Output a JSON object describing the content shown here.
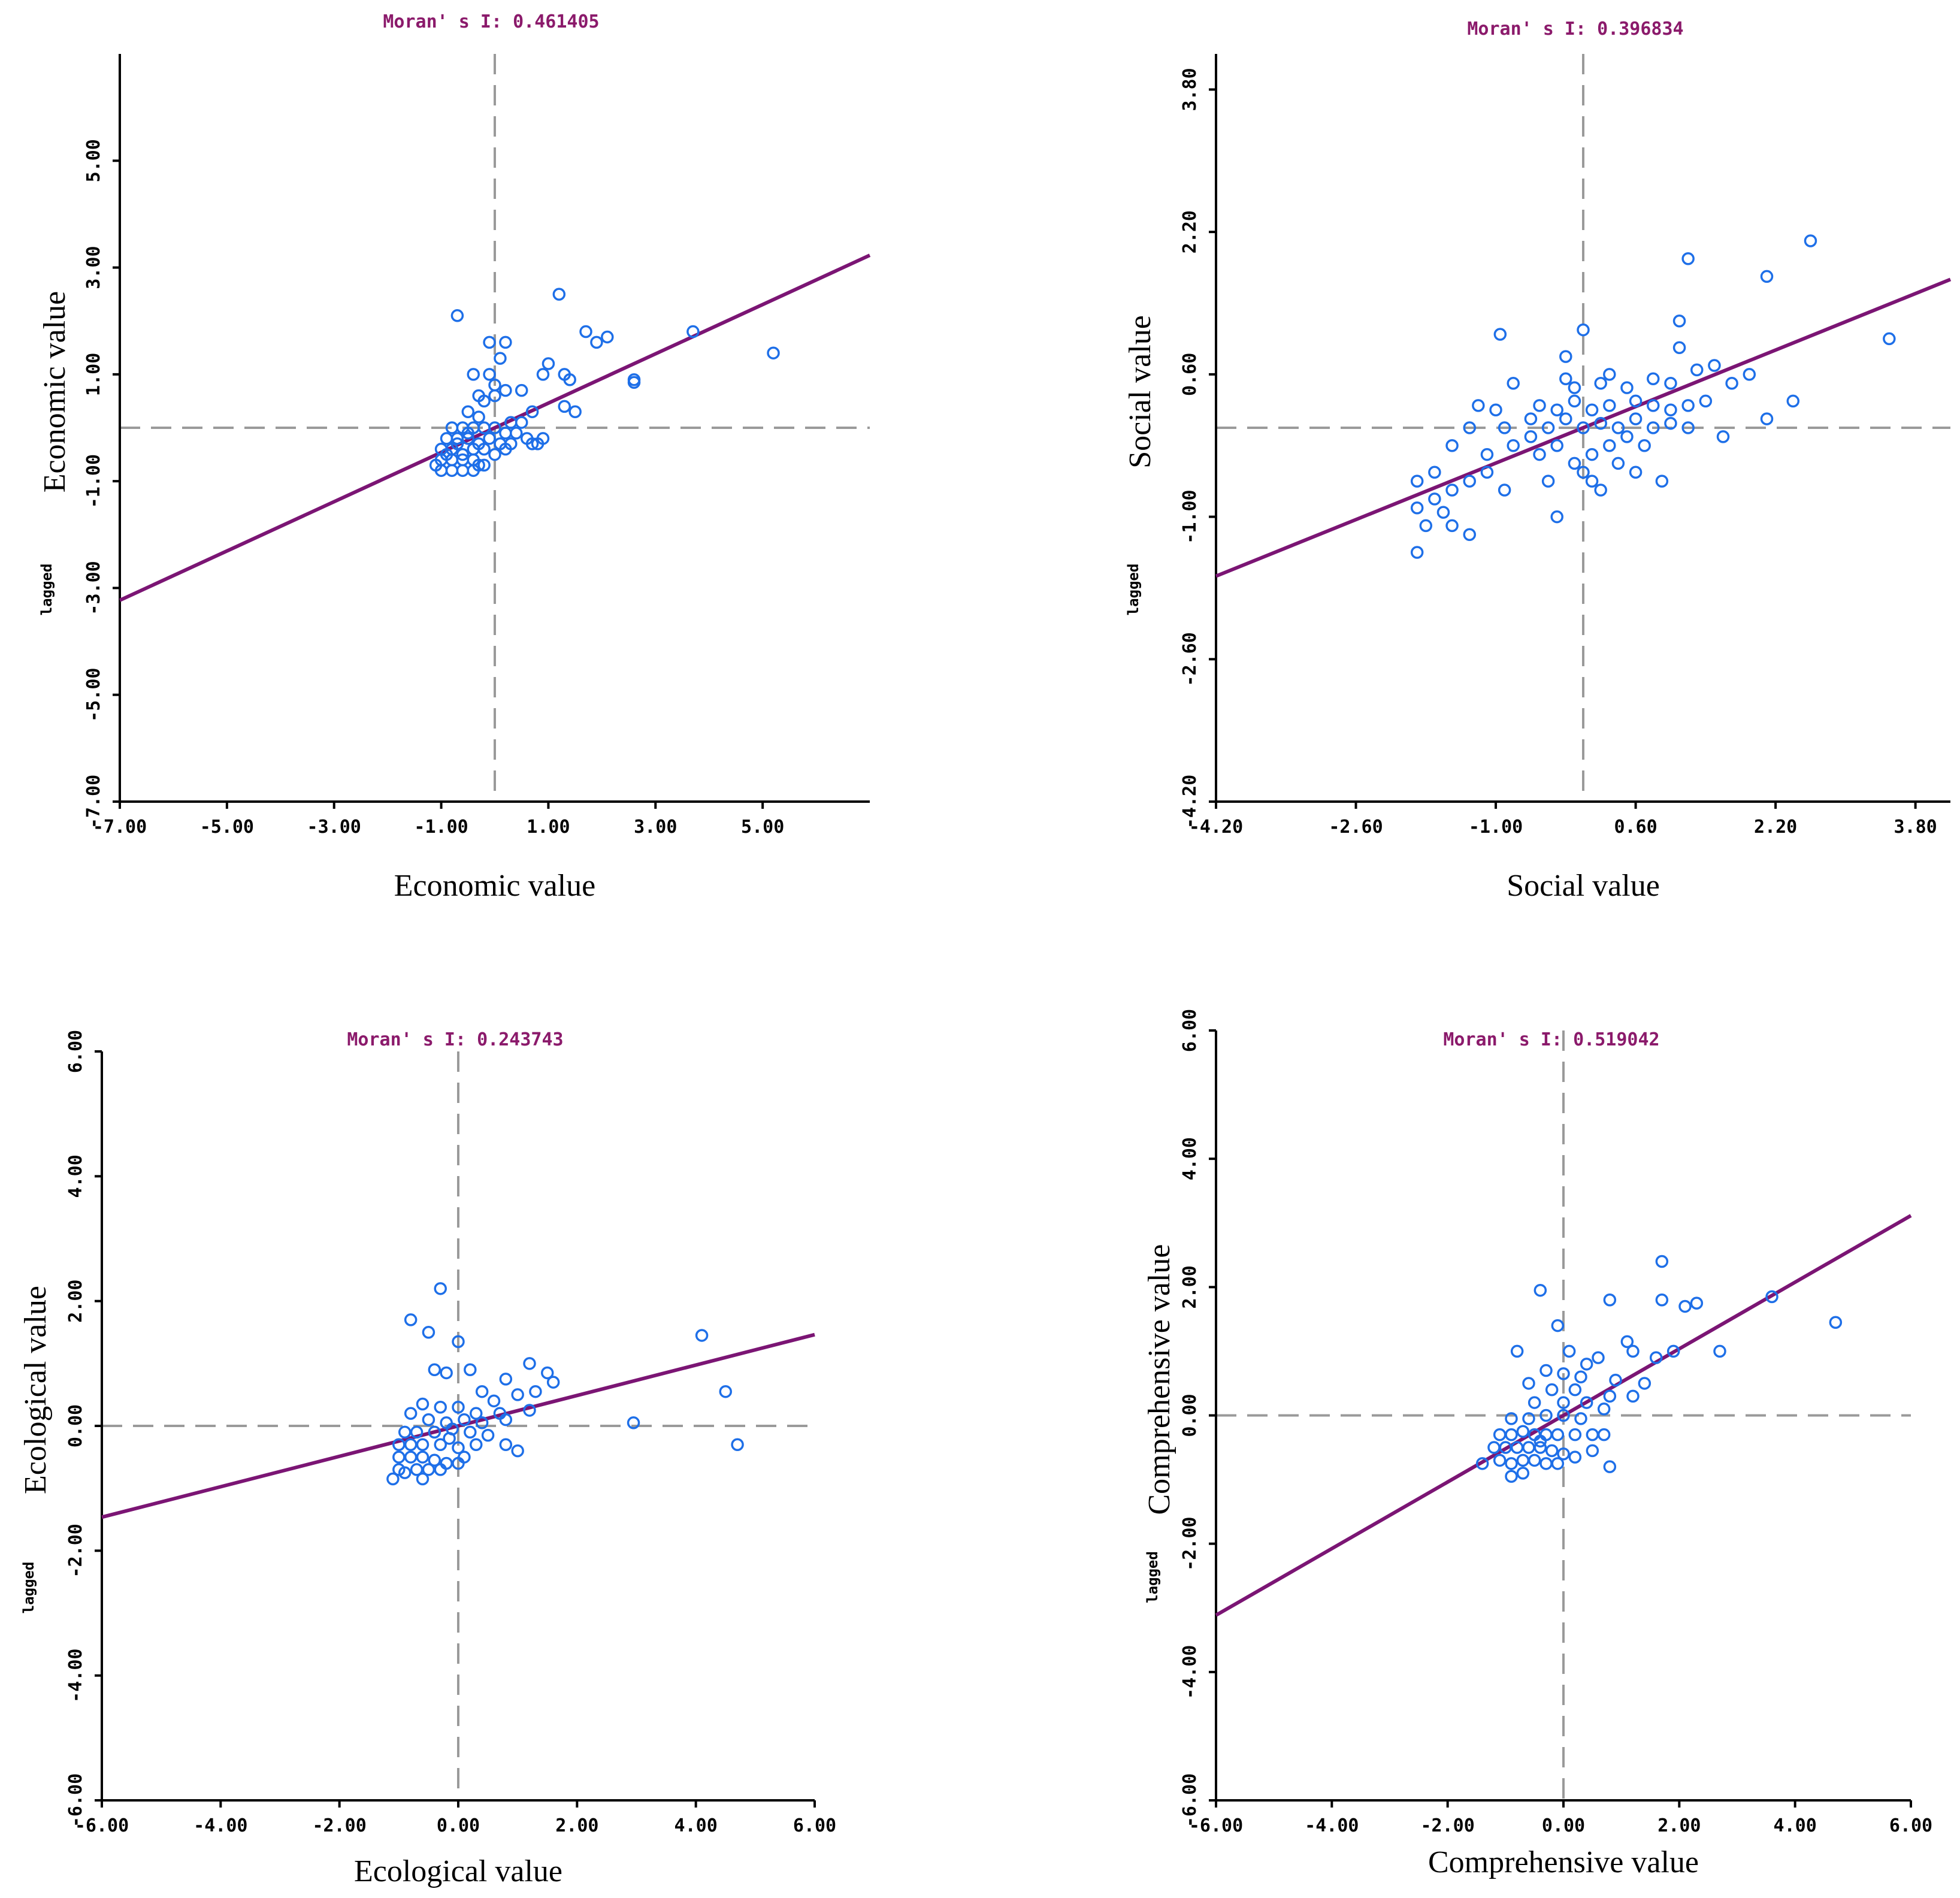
{
  "colors": {
    "points": "#1e6fe8",
    "regression": "#7b1574",
    "moran": "#8b1a6b",
    "guides": "#9a9a9a"
  },
  "chart_data": [
    {
      "type": "scatter",
      "moran_text": "Moran' s I: 0.461405",
      "xlabel": "Economic value",
      "ylabel_prefix": "lagged",
      "ylabel": "Economic value",
      "xlim": [
        -7,
        7
      ],
      "ylim": [
        -7,
        7
      ],
      "xticks": [
        -7,
        -5,
        -3,
        -1,
        1,
        3,
        5
      ],
      "xtick_labels": [
        "-7.00",
        "-5.00",
        "-3.00",
        "-1.00",
        "1.00",
        "3.00",
        "5.00"
      ],
      "yticks": [
        -7,
        -5,
        -3,
        -1,
        1,
        3,
        5
      ],
      "ytick_labels": [
        "-7.00",
        "-5.00",
        "-3.00",
        "-1.00",
        "1.00",
        "3.00",
        "5.00"
      ],
      "regression_slope": 0.461405,
      "points": [
        [
          -0.7,
          2.1
        ],
        [
          1.2,
          2.5
        ],
        [
          1.7,
          1.8
        ],
        [
          1.9,
          1.6
        ],
        [
          2.1,
          1.7
        ],
        [
          3.7,
          1.8
        ],
        [
          5.2,
          1.4
        ],
        [
          2.6,
          0.9
        ],
        [
          2.6,
          0.85
        ],
        [
          -0.1,
          1.6
        ],
        [
          0.2,
          1.6
        ],
        [
          0.1,
          1.3
        ],
        [
          -0.4,
          1.0
        ],
        [
          -0.1,
          1.0
        ],
        [
          1.0,
          1.2
        ],
        [
          0.9,
          1.0
        ],
        [
          1.3,
          1.0
        ],
        [
          1.4,
          0.9
        ],
        [
          1.3,
          0.4
        ],
        [
          1.5,
          0.3
        ],
        [
          0.0,
          0.8
        ],
        [
          0.2,
          0.7
        ],
        [
          0.5,
          0.7
        ],
        [
          -0.3,
          0.6
        ],
        [
          -0.2,
          0.5
        ],
        [
          0.0,
          0.6
        ],
        [
          -0.5,
          0.3
        ],
        [
          -0.3,
          0.2
        ],
        [
          0.3,
          0.1
        ],
        [
          0.7,
          0.3
        ],
        [
          0.5,
          0.1
        ],
        [
          -0.8,
          0.0
        ],
        [
          -0.6,
          0.0
        ],
        [
          -0.4,
          0.0
        ],
        [
          -0.2,
          0.0
        ],
        [
          0.0,
          0.0
        ],
        [
          0.2,
          -0.1
        ],
        [
          0.4,
          -0.1
        ],
        [
          -0.9,
          -0.2
        ],
        [
          -0.7,
          -0.2
        ],
        [
          -0.5,
          -0.2
        ],
        [
          -0.3,
          -0.3
        ],
        [
          -0.1,
          -0.2
        ],
        [
          0.1,
          -0.3
        ],
        [
          0.3,
          -0.3
        ],
        [
          0.6,
          -0.2
        ],
        [
          0.7,
          -0.3
        ],
        [
          0.8,
          -0.3
        ],
        [
          0.9,
          -0.2
        ],
        [
          -1.0,
          -0.4
        ],
        [
          -0.8,
          -0.4
        ],
        [
          -0.6,
          -0.5
        ],
        [
          -0.4,
          -0.4
        ],
        [
          -0.2,
          -0.4
        ],
        [
          0.0,
          -0.5
        ],
        [
          0.2,
          -0.4
        ],
        [
          -1.0,
          -0.6
        ],
        [
          -0.8,
          -0.6
        ],
        [
          -0.6,
          -0.6
        ],
        [
          -0.4,
          -0.6
        ],
        [
          -0.2,
          -0.7
        ],
        [
          -1.0,
          -0.8
        ],
        [
          -0.8,
          -0.8
        ],
        [
          -0.6,
          -0.8
        ],
        [
          -0.4,
          -0.8
        ],
        [
          -0.7,
          -0.3
        ],
        [
          -0.5,
          -0.1
        ],
        [
          -0.9,
          -0.5
        ],
        [
          -1.1,
          -0.7
        ],
        [
          -0.3,
          -0.7
        ]
      ]
    },
    {
      "type": "scatter",
      "moran_text": "Moran' s I: 0.396834",
      "xlabel": "Social value",
      "ylabel_prefix": "lagged",
      "ylabel": "Social value",
      "xlim": [
        -4.2,
        4.2
      ],
      "ylim": [
        -4.2,
        4.2
      ],
      "xticks": [
        -4.2,
        -2.6,
        -1.0,
        0.6,
        2.2,
        3.8
      ],
      "xtick_labels": [
        "-4.20",
        "-2.60",
        "-1.00",
        "0.60",
        "2.20",
        "3.80"
      ],
      "yticks": [
        -4.2,
        -2.6,
        -1.0,
        0.6,
        2.2,
        3.8
      ],
      "ytick_labels": [
        "-4.20",
        "-2.60",
        "-1.00",
        "0.60",
        "2.20",
        "3.80"
      ],
      "regression_slope": 0.396834,
      "points": [
        [
          2.6,
          2.1
        ],
        [
          1.2,
          1.9
        ],
        [
          2.1,
          1.7
        ],
        [
          1.1,
          1.2
        ],
        [
          -0.95,
          1.05
        ],
        [
          0.0,
          1.1
        ],
        [
          1.1,
          0.9
        ],
        [
          3.5,
          1.0
        ],
        [
          -0.2,
          0.8
        ],
        [
          0.3,
          0.6
        ],
        [
          -0.8,
          0.5
        ],
        [
          -0.2,
          0.55
        ],
        [
          -0.1,
          0.45
        ],
        [
          0.2,
          0.5
        ],
        [
          0.5,
          0.45
        ],
        [
          0.8,
          0.55
        ],
        [
          1.0,
          0.5
        ],
        [
          1.3,
          0.65
        ],
        [
          1.5,
          0.7
        ],
        [
          1.7,
          0.5
        ],
        [
          1.9,
          0.6
        ],
        [
          -1.2,
          0.25
        ],
        [
          -1.0,
          0.2
        ],
        [
          -0.5,
          0.25
        ],
        [
          -0.3,
          0.2
        ],
        [
          -0.1,
          0.3
        ],
        [
          0.1,
          0.2
        ],
        [
          0.3,
          0.25
        ],
        [
          0.6,
          0.3
        ],
        [
          0.8,
          0.25
        ],
        [
          1.0,
          0.2
        ],
        [
          1.2,
          0.25
        ],
        [
          1.4,
          0.3
        ],
        [
          -1.3,
          0.0
        ],
        [
          -0.9,
          0.0
        ],
        [
          -0.6,
          0.1
        ],
        [
          -0.4,
          0.0
        ],
        [
          -0.2,
          0.1
        ],
        [
          0.0,
          0.0
        ],
        [
          0.2,
          0.05
        ],
        [
          0.4,
          0.0
        ],
        [
          0.6,
          0.1
        ],
        [
          0.8,
          0.0
        ],
        [
          1.0,
          0.05
        ],
        [
          1.2,
          0.0
        ],
        [
          2.1,
          0.1
        ],
        [
          2.4,
          0.3
        ],
        [
          -1.5,
          -0.2
        ],
        [
          -1.1,
          -0.3
        ],
        [
          -0.8,
          -0.2
        ],
        [
          -0.5,
          -0.3
        ],
        [
          -0.3,
          -0.2
        ],
        [
          -0.1,
          -0.4
        ],
        [
          0.1,
          -0.3
        ],
        [
          0.3,
          -0.2
        ],
        [
          0.5,
          -0.1
        ],
        [
          0.7,
          -0.2
        ],
        [
          1.6,
          -0.1
        ],
        [
          -1.9,
          -0.6
        ],
        [
          -1.7,
          -0.5
        ],
        [
          -1.5,
          -0.7
        ],
        [
          -1.3,
          -0.6
        ],
        [
          -1.1,
          -0.5
        ],
        [
          -0.9,
          -0.7
        ],
        [
          -0.4,
          -0.6
        ],
        [
          0.1,
          -0.6
        ],
        [
          0.6,
          -0.5
        ],
        [
          0.9,
          -0.6
        ],
        [
          -1.9,
          -0.9
        ],
        [
          -1.8,
          -1.1
        ],
        [
          -1.6,
          -0.95
        ],
        [
          -1.5,
          -1.1
        ],
        [
          -1.3,
          -1.2
        ],
        [
          -1.7,
          -0.8
        ],
        [
          -0.3,
          -1.0
        ],
        [
          -1.9,
          -1.4
        ],
        [
          0.2,
          -0.7
        ],
        [
          -0.6,
          -0.1
        ],
        [
          0.0,
          -0.5
        ],
        [
          0.4,
          -0.4
        ]
      ]
    },
    {
      "type": "scatter",
      "moran_text": "Moran' s I: 0.243743",
      "xlabel": "Ecological value",
      "ylabel_prefix": "lagged",
      "ylabel": "Ecological value",
      "xlim": [
        -6,
        6
      ],
      "ylim": [
        -6,
        6
      ],
      "xticks": [
        -6,
        -4,
        -2,
        0,
        2,
        4,
        6
      ],
      "xtick_labels": [
        "-6.00",
        "-4.00",
        "-2.00",
        "0.00",
        "2.00",
        "4.00",
        "6.00"
      ],
      "yticks": [
        -6,
        -4,
        -2,
        0,
        2,
        4,
        6
      ],
      "ytick_labels": [
        "-6.00",
        "-4.00",
        "-2.00",
        "0.00",
        "2.00",
        "4.00",
        "6.00"
      ],
      "regression_slope": 0.243743,
      "points": [
        [
          -0.3,
          2.2
        ],
        [
          -0.8,
          1.7
        ],
        [
          -0.5,
          1.5
        ],
        [
          0.0,
          1.35
        ],
        [
          4.1,
          1.45
        ],
        [
          1.2,
          1.0
        ],
        [
          1.5,
          0.85
        ],
        [
          1.6,
          0.7
        ],
        [
          -0.4,
          0.9
        ],
        [
          -0.2,
          0.85
        ],
        [
          0.2,
          0.9
        ],
        [
          0.8,
          0.75
        ],
        [
          4.5,
          0.55
        ],
        [
          1.3,
          0.55
        ],
        [
          1.0,
          0.5
        ],
        [
          0.4,
          0.55
        ],
        [
          0.6,
          0.4
        ],
        [
          -0.6,
          0.35
        ],
        [
          -0.3,
          0.3
        ],
        [
          0.0,
          0.3
        ],
        [
          0.3,
          0.2
        ],
        [
          0.7,
          0.2
        ],
        [
          1.2,
          0.25
        ],
        [
          -0.8,
          0.2
        ],
        [
          -0.5,
          0.1
        ],
        [
          -0.2,
          0.05
        ],
        [
          0.1,
          0.1
        ],
        [
          0.4,
          0.05
        ],
        [
          0.8,
          0.1
        ],
        [
          2.95,
          0.05
        ],
        [
          -0.9,
          -0.1
        ],
        [
          -0.7,
          -0.1
        ],
        [
          -0.4,
          -0.1
        ],
        [
          -0.1,
          -0.05
        ],
        [
          0.2,
          -0.1
        ],
        [
          0.5,
          -0.15
        ],
        [
          -1.0,
          -0.3
        ],
        [
          -0.8,
          -0.3
        ],
        [
          -0.6,
          -0.3
        ],
        [
          -0.3,
          -0.3
        ],
        [
          0.0,
          -0.35
        ],
        [
          0.3,
          -0.3
        ],
        [
          0.8,
          -0.3
        ],
        [
          1.0,
          -0.4
        ],
        [
          4.7,
          -0.3
        ],
        [
          -1.0,
          -0.5
        ],
        [
          -0.8,
          -0.5
        ],
        [
          -0.6,
          -0.5
        ],
        [
          -0.4,
          -0.55
        ],
        [
          -0.2,
          -0.6
        ],
        [
          0.0,
          -0.6
        ],
        [
          -1.0,
          -0.7
        ],
        [
          -0.9,
          -0.75
        ],
        [
          -0.7,
          -0.7
        ],
        [
          -0.5,
          -0.7
        ],
        [
          -0.6,
          -0.85
        ],
        [
          -1.1,
          -0.85
        ],
        [
          -0.3,
          -0.7
        ],
        [
          0.1,
          -0.5
        ],
        [
          -0.15,
          -0.2
        ]
      ]
    },
    {
      "type": "scatter",
      "moran_text": "Moran' s I: 0.519042",
      "xlabel": "Comprehensive value",
      "ylabel_prefix": "lagged",
      "ylabel": "Comprehensive value",
      "xlim": [
        -6,
        6
      ],
      "ylim": [
        -6,
        6
      ],
      "xticks": [
        -6,
        -4,
        -2,
        0,
        2,
        4,
        6
      ],
      "xtick_labels": [
        "-6.00",
        "-4.00",
        "-2.00",
        "0.00",
        "2.00",
        "4.00",
        "6.00"
      ],
      "yticks": [
        -6,
        -4,
        -2,
        0,
        2,
        4,
        6
      ],
      "ytick_labels": [
        "-6.00",
        "-4.00",
        "-2.00",
        "0.00",
        "2.00",
        "4.00",
        "6.00"
      ],
      "regression_slope": 0.519042,
      "points": [
        [
          1.7,
          2.4
        ],
        [
          -0.4,
          1.95
        ],
        [
          0.8,
          1.8
        ],
        [
          1.7,
          1.8
        ],
        [
          2.1,
          1.7
        ],
        [
          2.3,
          1.75
        ],
        [
          3.6,
          1.85
        ],
        [
          4.7,
          1.45
        ],
        [
          -0.1,
          1.4
        ],
        [
          1.1,
          1.15
        ],
        [
          2.7,
          1.0
        ],
        [
          1.9,
          1.0
        ],
        [
          -0.8,
          1.0
        ],
        [
          0.1,
          1.0
        ],
        [
          0.6,
          0.9
        ],
        [
          1.2,
          1.0
        ],
        [
          1.6,
          0.9
        ],
        [
          0.4,
          0.8
        ],
        [
          -0.3,
          0.7
        ],
        [
          0.0,
          0.65
        ],
        [
          0.3,
          0.6
        ],
        [
          0.9,
          0.55
        ],
        [
          1.4,
          0.5
        ],
        [
          -0.6,
          0.5
        ],
        [
          -0.2,
          0.4
        ],
        [
          0.2,
          0.4
        ],
        [
          0.8,
          0.3
        ],
        [
          1.2,
          0.3
        ],
        [
          -0.5,
          0.2
        ],
        [
          0.0,
          0.2
        ],
        [
          0.4,
          0.2
        ],
        [
          0.7,
          0.1
        ],
        [
          -0.9,
          -0.05
        ],
        [
          -0.6,
          -0.05
        ],
        [
          -0.3,
          0.0
        ],
        [
          0.0,
          0.0
        ],
        [
          0.3,
          -0.05
        ],
        [
          -1.1,
          -0.3
        ],
        [
          -0.9,
          -0.3
        ],
        [
          -0.7,
          -0.25
        ],
        [
          -0.5,
          -0.3
        ],
        [
          -0.3,
          -0.3
        ],
        [
          -0.1,
          -0.3
        ],
        [
          0.2,
          -0.3
        ],
        [
          0.5,
          -0.3
        ],
        [
          0.7,
          -0.3
        ],
        [
          -1.2,
          -0.5
        ],
        [
          -1.0,
          -0.5
        ],
        [
          -0.8,
          -0.5
        ],
        [
          -0.6,
          -0.5
        ],
        [
          -0.4,
          -0.5
        ],
        [
          -0.2,
          -0.55
        ],
        [
          0.0,
          -0.6
        ],
        [
          0.5,
          -0.55
        ],
        [
          -1.1,
          -0.7
        ],
        [
          -0.9,
          -0.75
        ],
        [
          -0.7,
          -0.7
        ],
        [
          -0.5,
          -0.7
        ],
        [
          -0.3,
          -0.75
        ],
        [
          -0.1,
          -0.75
        ],
        [
          -1.4,
          -0.75
        ],
        [
          -0.9,
          -0.95
        ],
        [
          -0.7,
          -0.9
        ],
        [
          0.8,
          -0.8
        ],
        [
          -0.4,
          -0.4
        ],
        [
          0.2,
          -0.65
        ]
      ]
    }
  ]
}
